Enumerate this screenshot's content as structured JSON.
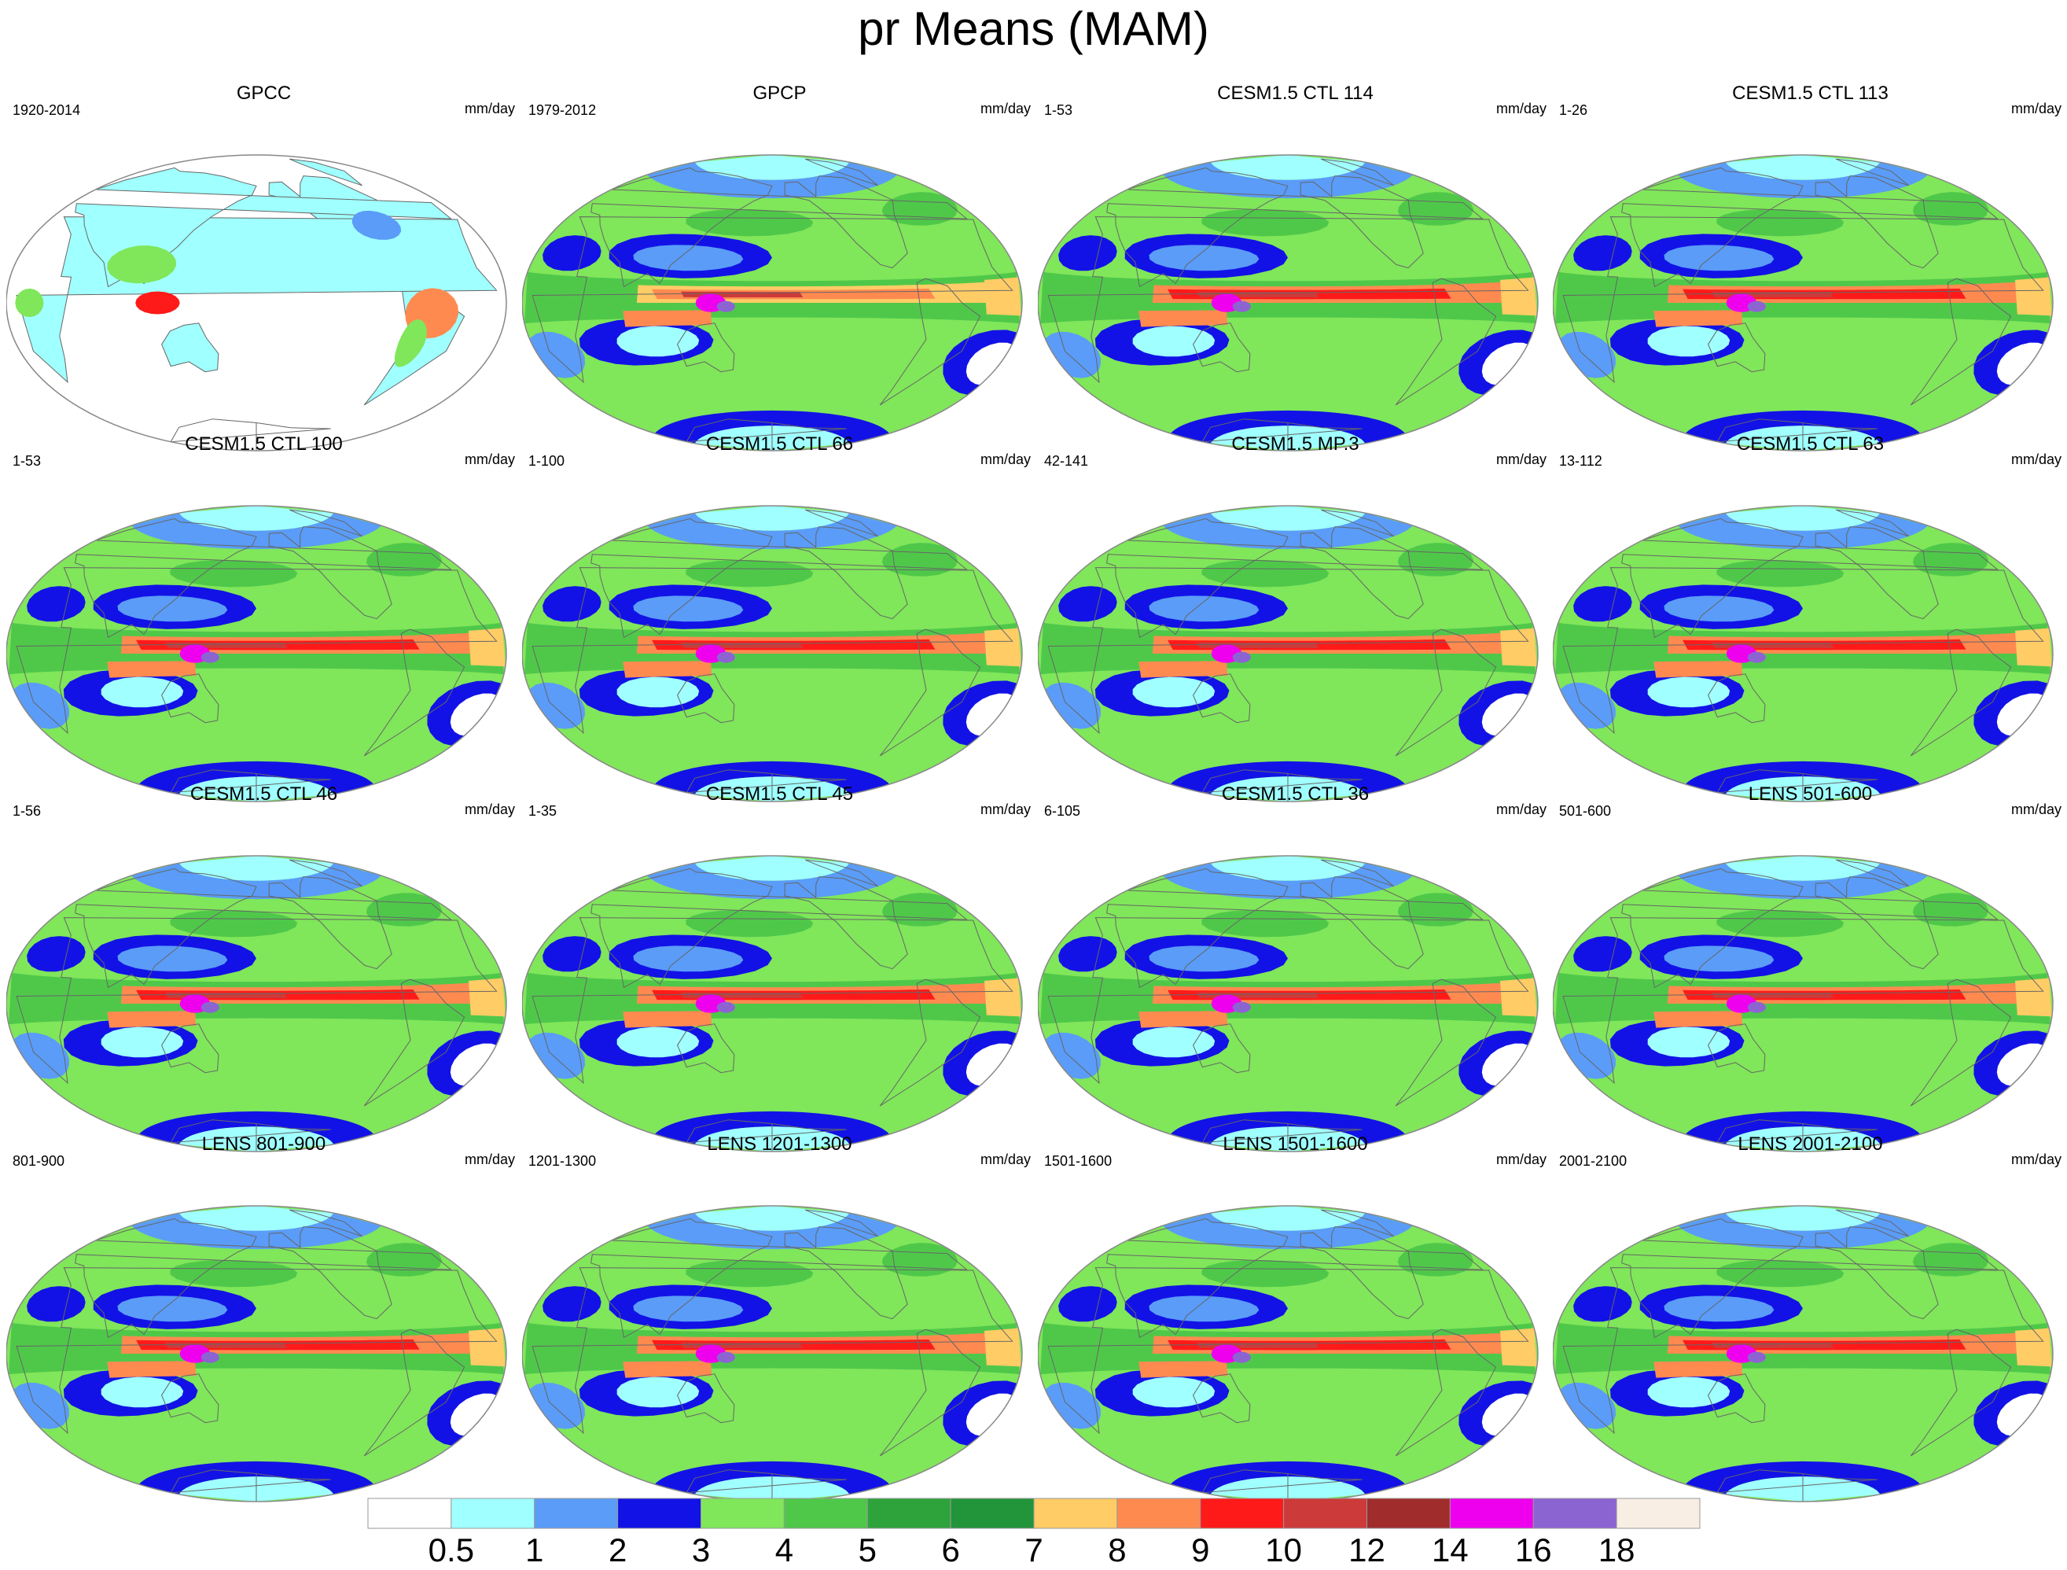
{
  "title": "pr Means (MAM)",
  "units": "mm/day",
  "panels": [
    {
      "name": "GPCC",
      "period": "1920-2014",
      "type": "land"
    },
    {
      "name": "GPCP",
      "period": "1979-2012",
      "type": "obs"
    },
    {
      "name": "CESM1.5 CTL 114",
      "period": "1-53",
      "type": "model"
    },
    {
      "name": "CESM1.5 CTL 113",
      "period": "1-26",
      "type": "model"
    },
    {
      "name": "CESM1.5 CTL 100",
      "period": "1-53",
      "type": "model"
    },
    {
      "name": "CESM1.5 CTL 66",
      "period": "1-100",
      "type": "model"
    },
    {
      "name": "CESM1.5 MP.3",
      "period": "42-141",
      "type": "model"
    },
    {
      "name": "CESM1.5 CTL 63",
      "period": "13-112",
      "type": "model"
    },
    {
      "name": "CESM1.5 CTL 46",
      "period": "1-56",
      "type": "model"
    },
    {
      "name": "CESM1.5 CTL 45",
      "period": "1-35",
      "type": "model"
    },
    {
      "name": "CESM1.5 CTL 36",
      "period": "6-105",
      "type": "model"
    },
    {
      "name": "LENS 501-600",
      "period": "501-600",
      "type": "model"
    },
    {
      "name": "LENS 801-900",
      "period": "801-900",
      "type": "model"
    },
    {
      "name": "LENS 1201-1300",
      "period": "1201-1300",
      "type": "model"
    },
    {
      "name": "LENS 1501-1600",
      "period": "1501-1600",
      "type": "model"
    },
    {
      "name": "LENS 2001-2100",
      "period": "2001-2100",
      "type": "model"
    }
  ],
  "colorbar": {
    "levels": [
      "0.5",
      "1",
      "2",
      "3",
      "4",
      "5",
      "6",
      "7",
      "8",
      "9",
      "10",
      "12",
      "14",
      "16",
      "18"
    ],
    "colors": [
      "#ffffff",
      "#a0ffff",
      "#5a9cf8",
      "#1212e6",
      "#80e65a",
      "#4fc84a",
      "#2ea33b",
      "#22943a",
      "#ffcc66",
      "#ff8a50",
      "#ff1a1a",
      "#cc3a3a",
      "#a02c2c",
      "#ee00ee",
      "#8c64d2",
      "#f8eee4"
    ]
  },
  "colors": {
    "coast": "#666666",
    "border": "#888888"
  }
}
